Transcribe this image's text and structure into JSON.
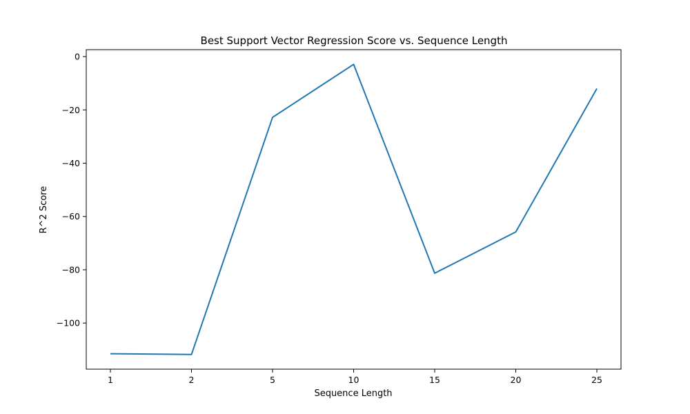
{
  "chart_data": {
    "type": "line",
    "title": "Best Support Vector Regression Score vs. Sequence Length",
    "xlabel": "Sequence Length",
    "ylabel": "R^2 Score",
    "categories": [
      "1",
      "2",
      "5",
      "10",
      "15",
      "20",
      "25"
    ],
    "series": [
      {
        "values": [
          -111.5,
          -111.8,
          -22.8,
          -2.9,
          -81.3,
          -65.8,
          -12.0
        ],
        "color": "#1f77b4"
      }
    ],
    "yticks": [
      0,
      -20,
      -40,
      -60,
      -80,
      -100
    ],
    "ytick_labels": [
      "0",
      "−20",
      "−40",
      "−60",
      "−80",
      "−100"
    ],
    "ylim": [
      -117.3,
      2.6
    ],
    "grid": false,
    "legend": false
  }
}
